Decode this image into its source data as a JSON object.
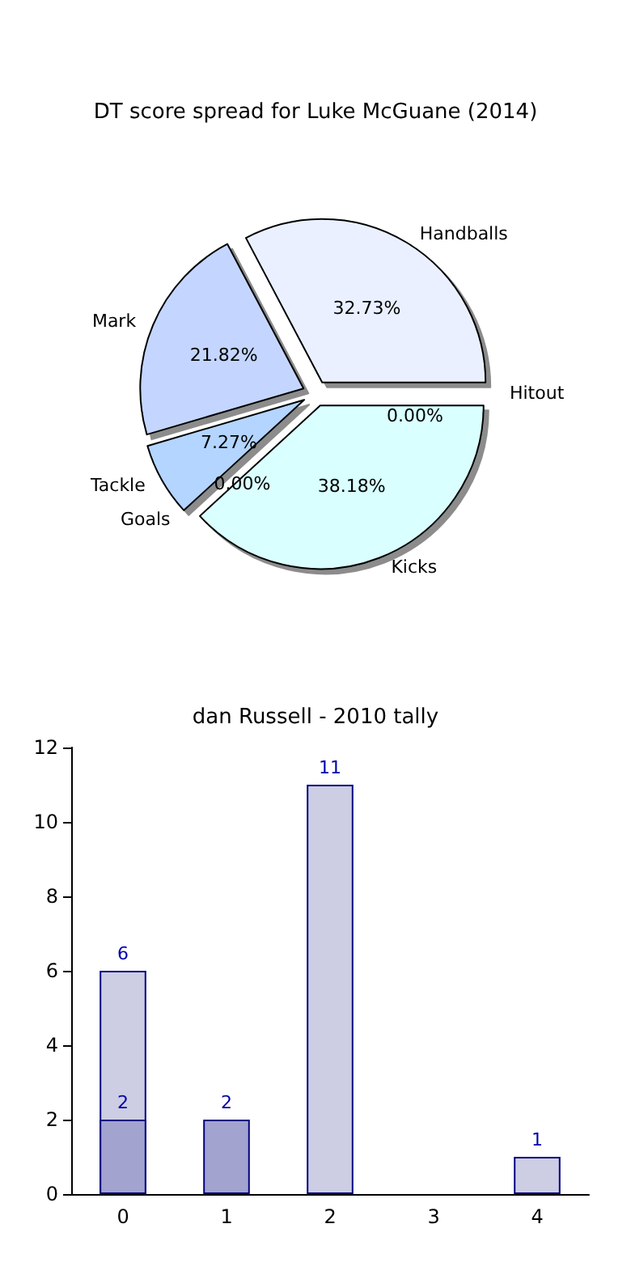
{
  "chart_data": [
    {
      "type": "pie",
      "title": "DT score spread for Luke McGuane (2014)",
      "categories": [
        "Handballs",
        "Mark",
        "Tackle",
        "Goals",
        "Kicks",
        "Hitout"
      ],
      "values": [
        32.73,
        21.82,
        7.27,
        0,
        38.18,
        0
      ],
      "value_labels": [
        "32.73%",
        "21.82%",
        "7.27%",
        "0.00%",
        "38.18%",
        "0.00%"
      ],
      "colors": [
        "#eaf0ff",
        "#c4d6ff",
        "#b3d5ff",
        "#c0e0ff",
        "#d9ffff",
        "#e0e8ff"
      ],
      "legend": false
    },
    {
      "type": "bar",
      "title": "dan Russell - 2010 tally",
      "categories": [
        "0",
        "1",
        "2",
        "3",
        "4"
      ],
      "series": [
        {
          "color": "#cdcde4",
          "values": [
            6,
            null,
            11,
            null,
            1
          ]
        },
        {
          "color": "#a3a3d0",
          "values": [
            2,
            2,
            null,
            null,
            null
          ]
        }
      ],
      "ylim": [
        0,
        12
      ],
      "yticks": [
        0,
        2,
        4,
        6,
        8,
        10,
        12
      ],
      "grid": false,
      "legend": false,
      "data_labels": true
    }
  ]
}
